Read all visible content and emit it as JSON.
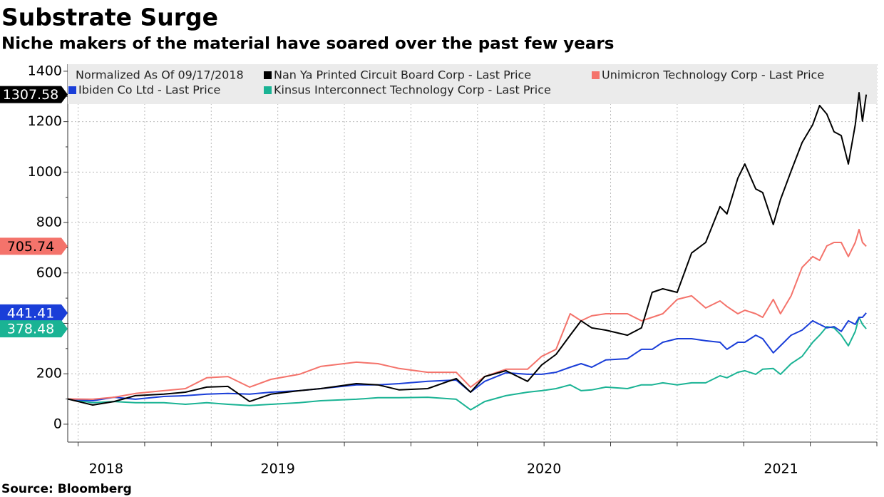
{
  "chart_data": {
    "type": "line",
    "title": "Substrate Surge",
    "subtitle": "Niche makers of the material have soared over the past few years",
    "source": "Source: Bloomberg",
    "legend_title": "Normalized As Of 09/17/2018",
    "x": [
      2018.711,
      2018.805,
      2018.885,
      2018.965,
      2019.072,
      2019.153,
      2019.233,
      2019.313,
      2019.394,
      2019.474,
      2019.581,
      2019.661,
      2019.795,
      2019.876,
      2019.956,
      2020.063,
      2020.17,
      2020.224,
      2020.277,
      2020.357,
      2020.438,
      2020.491,
      2020.545,
      2020.598,
      2020.639,
      2020.679,
      2020.732,
      2020.813,
      2020.866,
      2020.906,
      2020.946,
      2021.0,
      2021.054,
      2021.107,
      2021.161,
      2021.187,
      2021.228,
      2021.254,
      2021.295,
      2021.321,
      2021.361,
      2021.388,
      2021.428,
      2021.469,
      2021.509,
      2021.535,
      2021.562,
      2021.589,
      2021.616,
      2021.643,
      2021.669,
      2021.683,
      2021.696,
      2021.71
    ],
    "series": [
      {
        "name": "Nan Ya Printed Circuit Board Corp - Last Price",
        "color": "#000000",
        "values": [
          100,
          76,
          90,
          113,
          119,
          127,
          147,
          150,
          90,
          119,
          133,
          141,
          161,
          156,
          136,
          141,
          181,
          127,
          189,
          212,
          170,
          235,
          277,
          353,
          410,
          382,
          373,
          353,
          382,
          523,
          537,
          523,
          679,
          721,
          863,
          834,
          976,
          1032,
          933,
          919,
          792,
          891,
          1004,
          1117,
          1188,
          1264,
          1230,
          1160,
          1145,
          1032,
          1188,
          1315,
          1202,
          1307.58
        ]
      },
      {
        "name": "Unimicron Technology Corp - Last Price",
        "color": "#f4736b",
        "values": [
          100,
          99,
          107,
          122,
          133,
          141,
          184,
          189,
          147,
          178,
          198,
          229,
          246,
          240,
          221,
          206,
          206,
          147,
          189,
          218,
          218,
          269,
          297,
          438,
          410,
          430,
          438,
          438,
          410,
          424,
          438,
          495,
          509,
          461,
          489,
          467,
          438,
          452,
          438,
          424,
          495,
          438,
          509,
          622,
          665,
          650,
          707,
          721,
          721,
          665,
          721,
          772,
          721,
          705.74
        ]
      },
      {
        "name": "Ibiden Co Ltd - Last Price",
        "color": "#1a3ed8",
        "values": [
          100,
          93,
          107,
          99,
          110,
          113,
          119,
          122,
          119,
          127,
          133,
          141,
          156,
          156,
          161,
          170,
          175,
          127,
          170,
          204,
          198,
          198,
          206,
          226,
          240,
          226,
          255,
          260,
          297,
          297,
          325,
          339,
          339,
          331,
          325,
          297,
          325,
          325,
          353,
          339,
          283,
          311,
          353,
          373,
          410,
          396,
          382,
          387,
          368,
          410,
          396,
          424,
          424,
          441.41
        ]
      },
      {
        "name": "Kinsus Interconnect Technology Corp - Last Price",
        "color": "#1ab394",
        "values": [
          100,
          85,
          90,
          85,
          85,
          79,
          85,
          79,
          74,
          79,
          85,
          93,
          99,
          105,
          105,
          107,
          99,
          57,
          90,
          113,
          127,
          133,
          141,
          156,
          133,
          136,
          147,
          141,
          156,
          156,
          164,
          156,
          164,
          164,
          192,
          184,
          206,
          212,
          198,
          218,
          221,
          198,
          240,
          269,
          325,
          353,
          387,
          382,
          353,
          311,
          368,
          424,
          396,
          378.48
        ]
      }
    ],
    "xlim": [
      2018.711,
      2021.75
    ],
    "xticks": [
      {
        "value": 2018.855,
        "label": "2018"
      },
      {
        "value": 2019.5,
        "label": "2019"
      },
      {
        "value": 2020.5,
        "label": "2020"
      },
      {
        "value": 2021.39,
        "label": "2021"
      }
    ],
    "x_grid": [
      2018.75,
      2019.0,
      2019.25,
      2019.5,
      2019.75,
      2020.0,
      2020.25,
      2020.5,
      2020.75,
      2021.0,
      2021.25,
      2021.5,
      2021.75
    ],
    "ylim": [
      -71,
      1428
    ],
    "yticks": [
      0,
      200,
      400,
      600,
      800,
      1000,
      1200,
      1400
    ],
    "y_minor_ticks": [
      100,
      300,
      500,
      700,
      900,
      1100,
      1300
    ],
    "grid": true
  }
}
